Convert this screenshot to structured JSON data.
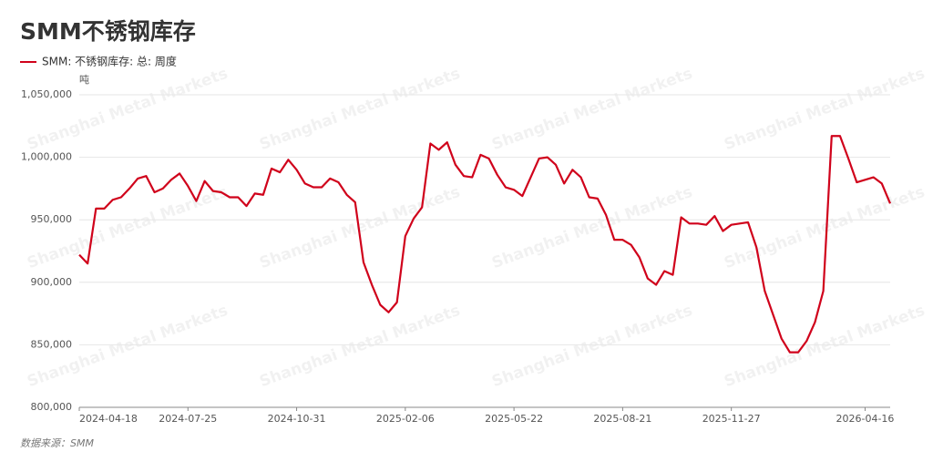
{
  "chart_data": {
    "type": "line",
    "title": "SMM不锈钢库存",
    "y_unit": "吨",
    "source": "数据来源：SMM",
    "watermark": "Shanghai Metal Markets",
    "grid": true,
    "legend": "top-left",
    "categories": [
      "2024-04-18",
      null,
      null,
      null,
      null,
      null,
      null,
      null,
      null,
      null,
      null,
      null,
      null,
      "2024-07-25",
      null,
      null,
      null,
      null,
      null,
      null,
      null,
      null,
      null,
      null,
      null,
      null,
      "2024-10-31",
      null,
      null,
      null,
      null,
      null,
      null,
      null,
      null,
      null,
      null,
      null,
      null,
      "2025-02-06",
      null,
      null,
      null,
      null,
      null,
      null,
      null,
      null,
      null,
      null,
      null,
      null,
      "2025-05-22",
      null,
      null,
      null,
      null,
      null,
      null,
      null,
      null,
      null,
      null,
      null,
      null,
      "2025-08-21",
      null,
      null,
      null,
      null,
      null,
      null,
      null,
      null,
      null,
      null,
      null,
      null,
      "2025-11-27",
      null,
      null,
      null,
      null,
      null,
      null,
      null,
      null,
      null,
      null,
      null,
      null,
      null,
      null,
      null,
      "2026-04-16",
      null,
      null,
      null
    ],
    "series": [
      {
        "name": "SMM: 不锈钢库存: 总: 周度",
        "color": "#d0021b",
        "values": [
          922000,
          915000,
          959000,
          959000,
          966000,
          968000,
          975000,
          983000,
          985000,
          972000,
          975000,
          982000,
          987000,
          977000,
          965000,
          981000,
          973000,
          972000,
          968000,
          968000,
          961000,
          971000,
          970000,
          991000,
          988000,
          998000,
          990000,
          979000,
          976000,
          976000,
          983000,
          980000,
          970000,
          964000,
          916000,
          898000,
          882000,
          876000,
          884000,
          937000,
          951000,
          960000,
          1011000,
          1006000,
          1012000,
          994000,
          985000,
          984000,
          1002000,
          999000,
          986000,
          976000,
          974000,
          969000,
          984000,
          999000,
          1000000,
          994000,
          979000,
          990000,
          984000,
          968000,
          967000,
          954000,
          934000,
          934000,
          930000,
          920000,
          903000,
          898000,
          909000,
          906000,
          952000,
          947000,
          947000,
          946000,
          953000,
          941000,
          946000,
          947000,
          948000,
          928000,
          893000,
          874000,
          855000,
          844000,
          844000,
          853000,
          868000,
          893000,
          1017000,
          1017000,
          999000,
          980000,
          982000,
          984000,
          979000,
          963000
        ]
      }
    ],
    "ylim": [
      800000,
      1050000
    ],
    "yticks": [
      {
        "value": 800000,
        "label": "800,000"
      },
      {
        "value": 850000,
        "label": "850,000"
      },
      {
        "value": 900000,
        "label": "900,000"
      },
      {
        "value": 950000,
        "label": "950,000"
      },
      {
        "value": 1000000,
        "label": "1,000,000"
      },
      {
        "value": 1050000,
        "label": "1,050,000"
      }
    ]
  }
}
